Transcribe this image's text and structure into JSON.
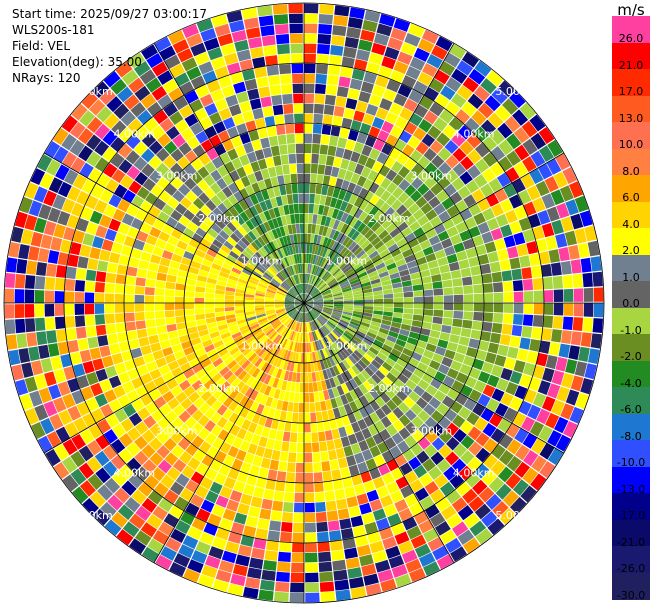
{
  "header": {
    "start_time": "Start time: 2025/09/27 03:00:17",
    "instrument": "WLS200s-181",
    "field": "Field: VEL",
    "elevation": "Elevation(deg): 35.00",
    "nrays": "NRays: 120"
  },
  "range_rings": [
    "1.00km",
    "2.00km",
    "3.00km",
    "4.00km",
    "5.00km"
  ],
  "colorbar": {
    "unit": "m/s",
    "levels": [
      {
        "label": "26.0",
        "color": "#ff40a0"
      },
      {
        "label": "21.0",
        "color": "#ff0000"
      },
      {
        "label": "17.0",
        "color": "#ff2a00"
      },
      {
        "label": "13.0",
        "color": "#ff5a20"
      },
      {
        "label": "10.0",
        "color": "#ff7050"
      },
      {
        "label": "8.0",
        "color": "#ff8040"
      },
      {
        "label": "6.0",
        "color": "#ffa500"
      },
      {
        "label": "4.0",
        "color": "#ffd400"
      },
      {
        "label": "2.0",
        "color": "#ffff00"
      },
      {
        "label": "1.0",
        "color": "#708090"
      },
      {
        "label": "0.0",
        "color": "#646464"
      },
      {
        "label": "-1.0",
        "color": "#a8d640"
      },
      {
        "label": "-2.0",
        "color": "#6b8e23"
      },
      {
        "label": "-4.0",
        "color": "#228b22"
      },
      {
        "label": "-6.0",
        "color": "#2e8b57"
      },
      {
        "label": "-8.0",
        "color": "#1e78d2"
      },
      {
        "label": "-10.0",
        "color": "#3050ff"
      },
      {
        "label": "-13.0",
        "color": "#0000ff"
      },
      {
        "label": "-17.0",
        "color": "#00008b"
      },
      {
        "label": "-21.0",
        "color": "#0a0a6a"
      },
      {
        "label": "-26.0",
        "color": "#191970"
      },
      {
        "label": "-30.0",
        "color": "#202060"
      }
    ]
  }
}
